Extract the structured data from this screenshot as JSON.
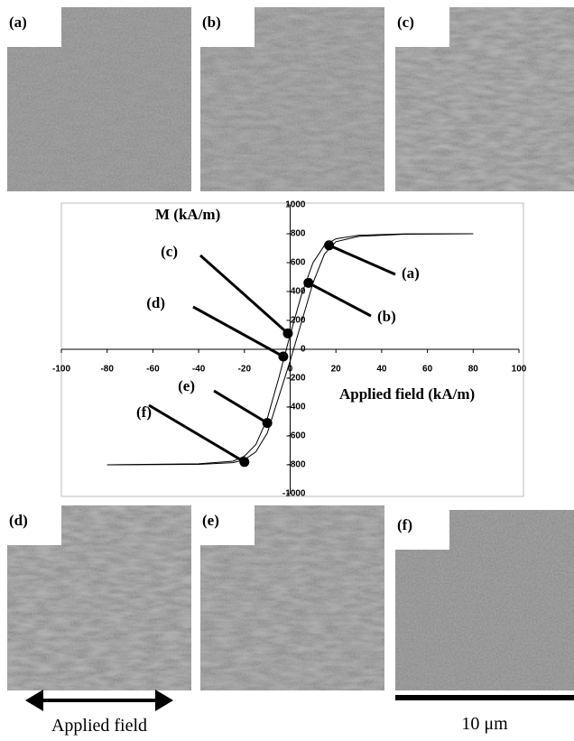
{
  "panels": [
    {
      "label": "(a)"
    },
    {
      "label": "(b)"
    },
    {
      "label": "(c)"
    },
    {
      "label": "(d)"
    },
    {
      "label": "(e)"
    },
    {
      "label": "(f)"
    }
  ],
  "arrow_label": "Applied field",
  "scale_bar_label": "10 μm",
  "chart_data": {
    "type": "line",
    "y_label": "M (kA/m)",
    "x_label": "Applied field (kA/m)",
    "x": [
      -80,
      -40,
      -25,
      -20,
      -15,
      -10,
      -5,
      0,
      5,
      10,
      15,
      20,
      30,
      50,
      80
    ],
    "series": [
      {
        "color": "#000000",
        "values": [
          -800,
          -797,
          -785,
          -765,
          -710,
          -580,
          -330,
          -80,
          190,
          460,
          660,
          745,
          782,
          797,
          800
        ]
      },
      {
        "color": "#000000",
        "values": [
          -800,
          -793,
          -775,
          -740,
          -660,
          -480,
          -200,
          100,
          380,
          600,
          720,
          765,
          790,
          799,
          800
        ]
      }
    ],
    "annotations": [
      {
        "label": "(a)",
        "x": 17,
        "y": 720
      },
      {
        "label": "(b)",
        "x": 8,
        "y": 460
      },
      {
        "label": "(c)",
        "x": -1,
        "y": 110
      },
      {
        "label": "(d)",
        "x": -3,
        "y": -50
      },
      {
        "label": "(e)",
        "x": -10,
        "y": -510
      },
      {
        "label": "(f)",
        "x": -20,
        "y": -780
      }
    ],
    "xlim": [
      -100,
      100
    ],
    "xticks": [
      -100,
      -80,
      -60,
      -40,
      -20,
      0,
      20,
      40,
      60,
      80,
      100
    ],
    "ylim": [
      -1000,
      1000
    ],
    "yticks": [
      -1000,
      -800,
      -600,
      -400,
      -200,
      0,
      200,
      400,
      600,
      800,
      1000
    ]
  }
}
